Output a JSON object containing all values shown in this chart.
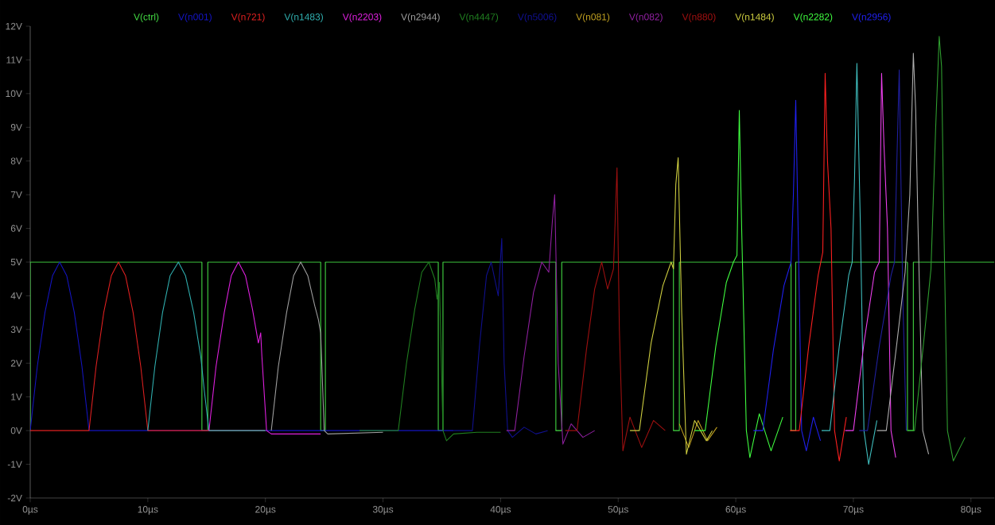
{
  "chart_data": {
    "type": "line",
    "legend": "top",
    "xlim": [
      0,
      82
    ],
    "ylim": [
      -2,
      12
    ],
    "xticks": [
      {
        "value": 0,
        "label": "0µs"
      },
      {
        "value": 10,
        "label": "10µs"
      },
      {
        "value": 20,
        "label": "20µs"
      },
      {
        "value": 30,
        "label": "30µs"
      },
      {
        "value": 40,
        "label": "40µs"
      },
      {
        "value": 50,
        "label": "50µs"
      },
      {
        "value": 60,
        "label": "60µs"
      },
      {
        "value": 70,
        "label": "70µs"
      },
      {
        "value": 80,
        "label": "80µs"
      }
    ],
    "yticks": [
      {
        "value": -2,
        "label": "-2V"
      },
      {
        "value": -1,
        "label": "-1V"
      },
      {
        "value": 0,
        "label": "0V"
      },
      {
        "value": 1,
        "label": "1V"
      },
      {
        "value": 2,
        "label": "2V"
      },
      {
        "value": 3,
        "label": "3V"
      },
      {
        "value": 4,
        "label": "4V"
      },
      {
        "value": 5,
        "label": "5V"
      },
      {
        "value": 6,
        "label": "6V"
      },
      {
        "value": 7,
        "label": "7V"
      },
      {
        "value": 8,
        "label": "8V"
      },
      {
        "value": 9,
        "label": "9V"
      },
      {
        "value": 10,
        "label": "10V"
      },
      {
        "value": 11,
        "label": "11V"
      },
      {
        "value": 12,
        "label": "12V"
      }
    ],
    "series": [
      {
        "name": "V(ctrl)",
        "color": "#44dd44",
        "x": [
          0,
          0,
          14.6,
          14.6,
          15.1,
          15.1,
          24.7,
          24.7,
          25.1,
          25.1,
          34.7,
          34.7,
          35.1,
          35.1,
          44.7,
          44.7,
          45.2,
          45.2,
          54.7,
          54.7,
          55.2,
          55.2,
          64.7,
          64.7,
          65.1,
          65.1,
          74.6,
          74.6,
          75.1,
          75.1,
          82
        ],
        "values": [
          0,
          5,
          5,
          0,
          0,
          5,
          5,
          0,
          0,
          5,
          5,
          0,
          0,
          5,
          5,
          0,
          0,
          5,
          5,
          0,
          0,
          5,
          5,
          0,
          0,
          5,
          5,
          0,
          0,
          5,
          5
        ]
      },
      {
        "name": "V(n001)",
        "color": "#1414c0",
        "x": [
          0,
          0.6,
          1.25,
          1.9,
          2.5,
          3.1,
          3.75,
          4.4,
          5,
          36
        ],
        "values": [
          0,
          1.9,
          3.5,
          4.6,
          5,
          4.6,
          3.5,
          1.9,
          0,
          0
        ]
      },
      {
        "name": "V(n721)",
        "color": "#e02020",
        "x": [
          0,
          5,
          5.6,
          6.25,
          6.9,
          7.5,
          8.1,
          8.75,
          9.4,
          10,
          20
        ],
        "values": [
          0,
          0,
          1.9,
          3.5,
          4.6,
          5,
          4.6,
          3.5,
          1.9,
          0,
          0
        ]
      },
      {
        "name": "V(n1483)",
        "color": "#30b0b0",
        "x": [
          10,
          10.6,
          11.25,
          11.9,
          12.6,
          13.2,
          13.9,
          14.5,
          14.8,
          15.2,
          20
        ],
        "values": [
          0,
          1.9,
          3.5,
          4.6,
          5,
          4.6,
          3.5,
          2.2,
          1.2,
          0,
          0
        ]
      },
      {
        "name": "V(n2203)",
        "color": "#e020e0",
        "x": [
          15.2,
          15.8,
          16.5,
          17.1,
          17.7,
          18.3,
          18.9,
          19.4,
          19.6,
          19.7,
          20.1,
          20.5,
          24.7
        ],
        "values": [
          0,
          1.9,
          3.5,
          4.6,
          5,
          4.6,
          3.6,
          2.6,
          2.9,
          2.2,
          0,
          -0.1,
          -0.1
        ]
      },
      {
        "name": "V(n2944)",
        "color": "#a0a0a0",
        "x": [
          20.5,
          21.1,
          21.8,
          22.4,
          23.0,
          23.6,
          24.2,
          24.5,
          24.7,
          25.0,
          25.3,
          30
        ],
        "values": [
          0,
          1.9,
          3.5,
          4.6,
          5,
          4.6,
          3.7,
          3.3,
          2.9,
          0,
          -0.1,
          -0.05
        ]
      },
      {
        "name": "V(n4447)",
        "color": "#208020",
        "x": [
          28,
          31.3,
          32.0,
          32.7,
          33.3,
          33.9,
          34.4,
          34.6,
          34.8,
          35.1,
          35.4,
          36,
          38,
          40
        ],
        "values": [
          0,
          0,
          2,
          3.6,
          4.7,
          5,
          4.5,
          3.9,
          4.4,
          0,
          -0.3,
          -0.1,
          -0.05,
          -0.05
        ]
      },
      {
        "name": "V(n5006)",
        "color": "#101090",
        "x": [
          36,
          37.6,
          38.2,
          38.8,
          39.2,
          39.8,
          40.1,
          40.3,
          40.6,
          41,
          42,
          43,
          44
        ],
        "values": [
          0,
          0,
          2.5,
          4.6,
          5,
          4,
          5.7,
          2,
          0,
          -0.2,
          0.1,
          -0.1,
          0
        ]
      },
      {
        "name": "V(n081)",
        "color": "#c0a020",
        "x": [
          55.2,
          56,
          56.8,
          57.6,
          58.4
        ],
        "values": [
          0.2,
          -0.5,
          0.3,
          -0.3,
          0.1
        ]
      },
      {
        "name": "V(n082)",
        "color": "#9020a0",
        "x": [
          40.5,
          41.2,
          42,
          42.8,
          43.5,
          44.1,
          44.4,
          44.6,
          44.9,
          45.3,
          46,
          47,
          48
        ],
        "values": [
          0,
          0,
          2.2,
          4.1,
          5,
          4.7,
          6.2,
          7,
          2,
          -0.4,
          0.2,
          -0.2,
          0
        ]
      },
      {
        "name": "V(n880)",
        "color": "#a01010",
        "x": [
          45.5,
          46.5,
          47.3,
          48,
          48.6,
          49.1,
          49.6,
          49.9,
          50.1,
          50.4,
          51,
          52,
          53,
          54
        ],
        "values": [
          0,
          0,
          2.4,
          4.2,
          5,
          4.2,
          4.8,
          7.8,
          3,
          -0.6,
          0.4,
          -0.5,
          0.3,
          0
        ]
      },
      {
        "name": "V(n1484)",
        "color": "#d0d040",
        "x": [
          51,
          51.8,
          52.8,
          53.8,
          54.5,
          54.7,
          54.9,
          55.1,
          55.4,
          55.8,
          56.5,
          57.5,
          58
        ],
        "values": [
          0,
          0,
          2.6,
          4.3,
          5,
          4.8,
          7.3,
          8.1,
          3.5,
          -0.7,
          0.3,
          -0.3,
          0
        ]
      },
      {
        "name": "V(n2282)",
        "color": "#40ff40",
        "x": [
          56.5,
          57.4,
          58.3,
          59.2,
          59.8,
          60.1,
          60.3,
          60.5,
          60.9,
          61.2,
          62,
          63,
          64
        ],
        "values": [
          0,
          0,
          2.5,
          4.4,
          5,
          5.2,
          9.5,
          6,
          0,
          -0.8,
          0.5,
          -0.6,
          0.4
        ]
      },
      {
        "name": "V(n2956)",
        "color": "#2020f0",
        "x": [
          61.5,
          62.3,
          63.2,
          64.1,
          64.7,
          64.9,
          65.1,
          65.3,
          65.6,
          66,
          66.6,
          67.2
        ],
        "values": [
          0,
          0,
          2.4,
          4.3,
          5,
          7,
          9.8,
          6,
          0,
          -0.6,
          0.4,
          -0.3
        ]
      },
      {
        "color": "#ff2020",
        "x": [
          64.6,
          65.4,
          66.2,
          67.0,
          67.4,
          67.6,
          67.8,
          68.1,
          68.4,
          68.8,
          69.4
        ],
        "values": [
          0,
          0,
          2.5,
          4.6,
          5.3,
          10.6,
          8,
          6,
          0,
          -0.9,
          0.4
        ]
      },
      {
        "color": "#40c0c0",
        "x": [
          67.3,
          68,
          68.8,
          69.6,
          69.9,
          70.1,
          70.3,
          70.6,
          70.9,
          71.3,
          72
        ],
        "values": [
          0,
          0,
          2.5,
          4.6,
          5,
          7.5,
          10.9,
          6,
          0,
          -1,
          0.3
        ]
      },
      {
        "color": "#f040f0",
        "x": [
          69.3,
          70,
          70.9,
          71.8,
          72.2,
          72.4,
          72.6,
          72.9,
          73.2,
          73.6
        ],
        "values": [
          0,
          0,
          2.6,
          4.7,
          5,
          10.6,
          8.5,
          6,
          0,
          -0.8
        ]
      },
      {
        "color": "#2020a0",
        "x": [
          70.5,
          71.2,
          72.2,
          73.2,
          73.5,
          73.7,
          73.9,
          74.2,
          74.5
        ],
        "values": [
          0,
          0,
          2.5,
          4.6,
          5,
          8,
          10.7,
          4,
          0
        ]
      },
      {
        "color": "#b0b0b0",
        "x": [
          72,
          72.8,
          73.7,
          74.4,
          74.8,
          75.1,
          75.3,
          75.5,
          75.9,
          76.4
        ],
        "values": [
          0,
          0,
          2.6,
          4.7,
          7,
          11.2,
          9.5,
          6,
          0,
          -0.7
        ]
      },
      {
        "color": "#30a030",
        "x": [
          74.6,
          75.2,
          76,
          76.6,
          77.0,
          77.3,
          77.5,
          77.7,
          78.0,
          78.5,
          79.5
        ],
        "values": [
          0,
          0,
          2.7,
          4.8,
          9,
          11.7,
          10.8,
          6,
          0,
          -0.9,
          -0.2
        ]
      }
    ]
  }
}
